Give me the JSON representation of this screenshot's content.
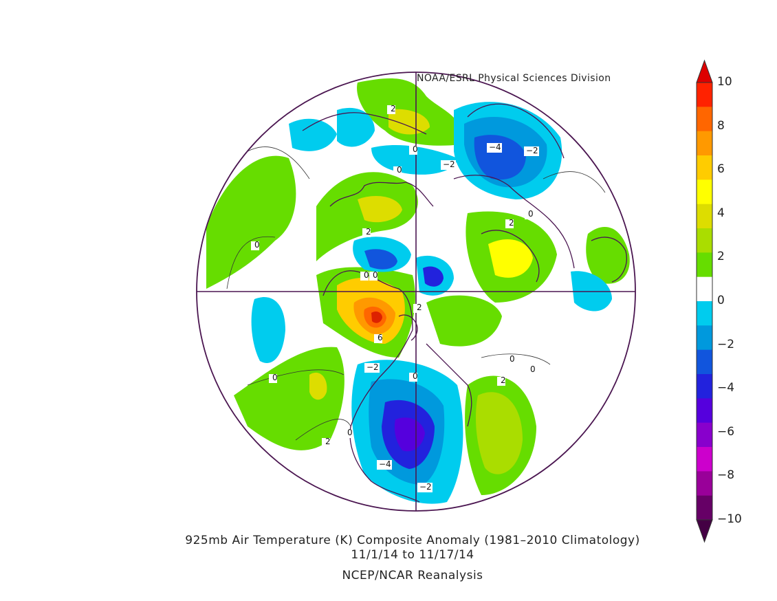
{
  "credit": "NOAA/ESRL Physical Sciences Division",
  "caption": {
    "title": "925mb Air Temperature (K) Composite Anomaly (1981–2010 Climatology)",
    "dates": "11/1/14   to 11/17/14",
    "source": "NCEP/NCAR Reanalysis"
  },
  "colorbar": {
    "ticks": [
      "10",
      "8",
      "6",
      "4",
      "2",
      "0",
      "−2",
      "−4",
      "−6",
      "−8",
      "−10"
    ],
    "colors": [
      "#ff2200",
      "#ff6600",
      "#ff9900",
      "#ffcc00",
      "#ffff00",
      "#dddd00",
      "#aadd00",
      "#66dd00",
      "#ffffff",
      "#00ccee",
      "#0099dd",
      "#1155dd",
      "#2222dd",
      "#5500dd",
      "#8800cc",
      "#cc00cc",
      "#990099",
      "#660066"
    ]
  },
  "contour_labels": {
    "a": "2",
    "b": "0",
    "c": "0",
    "d": "−2",
    "e": "−4",
    "f": "−2",
    "g": "0",
    "h": "2",
    "i": "2",
    "j": "0",
    "k": "0",
    "l": "0",
    "m": "2",
    "n": "6",
    "o": "0",
    "p": "−2",
    "q": "0",
    "r": "0",
    "s": "2",
    "t": "0",
    "u": "2",
    "v": "−4",
    "w": "−2",
    "x": "0"
  }
}
